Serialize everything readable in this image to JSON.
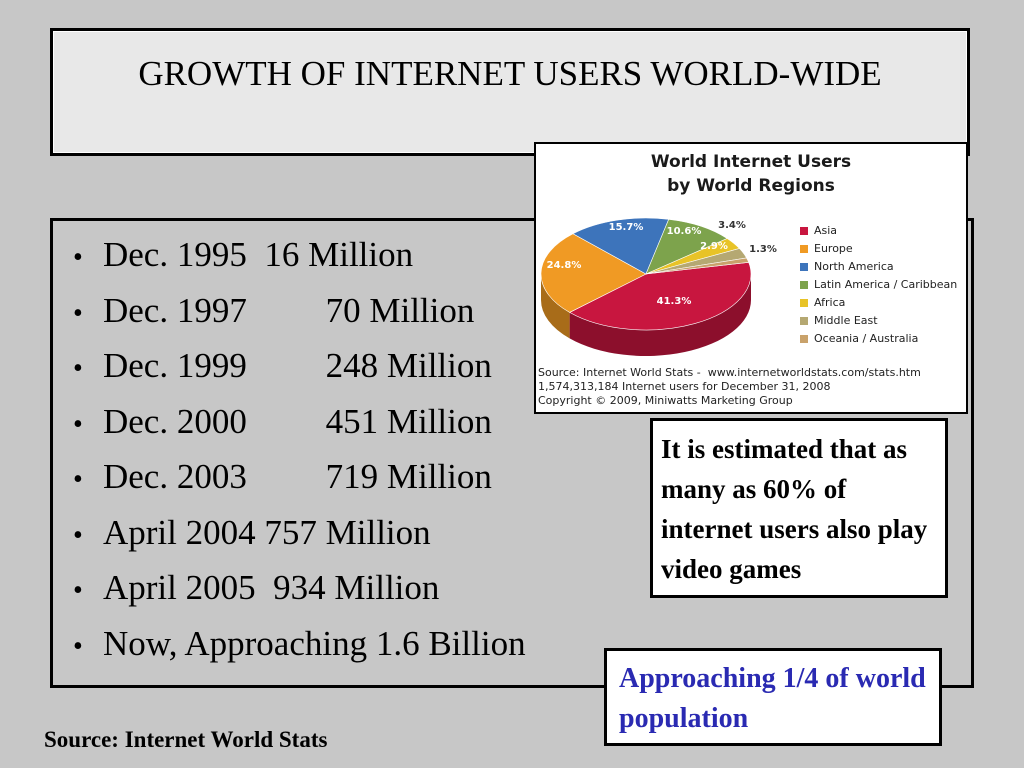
{
  "title": "GROWTH OF INTERNET USERS WORLD-WIDE",
  "bullets": [
    "Dec. 1995  16 Million",
    "Dec. 1997         70 Million",
    "Dec. 1999         248 Million",
    "Dec. 2000         451 Million",
    "Dec. 2003         719 Million",
    "April 2004 757 Million",
    "April 2005  934 Million",
    "Now, Approaching 1.6 Billion"
  ],
  "bullet_char": "•",
  "chart_data": {
    "type": "pie",
    "title_line1": "World Internet Users",
    "title_line2": "by World Regions",
    "categories": [
      "Asia",
      "Europe",
      "North America",
      "Latin America / Caribbean",
      "Africa",
      "Middle East",
      "Oceania / Australia"
    ],
    "values": [
      41.3,
      24.8,
      15.7,
      10.6,
      3.4,
      2.9,
      1.3
    ],
    "value_labels": [
      "41.3%",
      "24.8%",
      "15.7%",
      "10.6%",
      "3.4%",
      "2.9%",
      "1.3%"
    ],
    "colors": [
      "#c8163f",
      "#f09a24",
      "#3d74bb",
      "#7da34c",
      "#e8c327",
      "#b5a872",
      "#c9a26b"
    ],
    "source_lines": [
      "Source: Internet World Stats -  www.internetworldstats.com/stats.htm",
      "1,574,313,184 Internet users for December 31, 2008",
      "Copyright © 2009, Miniwatts Marketing Group"
    ]
  },
  "note": "It is estimated that as many as 60% of internet users also play video games",
  "population_note": "Approaching 1/4 of world population",
  "source_footer": "Source: Internet World Stats"
}
